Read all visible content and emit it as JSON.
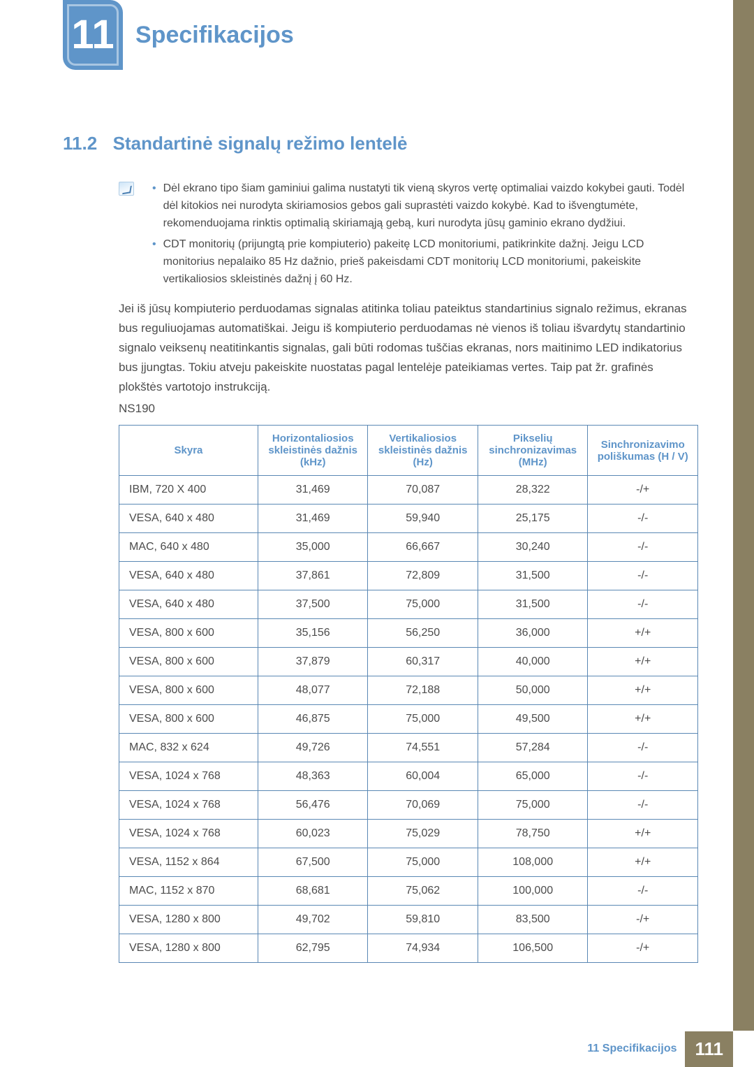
{
  "chapter": {
    "number": "11",
    "title": "Specifikacijos"
  },
  "section": {
    "number": "11.2",
    "title": "Standartinė signalų režimo lentelė"
  },
  "notes": [
    "Dėl ekrano tipo šiam gaminiui galima nustatyti tik vieną skyros vertę optimaliai vaizdo kokybei gauti. Todėl dėl kitokios nei nurodyta skiriamosios gebos gali suprastėti vaizdo kokybė. Kad to išvengtumėte, rekomenduojama rinktis optimalią skiriamąją gebą, kuri nurodyta jūsų gaminio ekrano dydžiui.",
    "CDT monitorių (prijungtą prie kompiuterio) pakeitę LCD monitoriumi, patikrinkite dažnį. Jeigu LCD monitorius nepalaiko 85 Hz dažnio, prieš pakeisdami CDT monitorių LCD monitoriumi, pakeiskite vertikaliosios skleistinės dažnį į 60 Hz."
  ],
  "paragraph": "Jei iš jūsų kompiuterio perduodamas signalas atitinka toliau pateiktus standartinius signalo režimus, ekranas bus reguliuojamas automatiškai. Jeigu iš kompiuterio perduodamas nė vienos iš toliau išvardytų standartinio signalo veiksenų neatitinkantis signalas, gali būti rodomas tuščias ekranas, nors maitinimo LED indikatorius bus įjungtas. Tokiu atveju pakeiskite nuostatas pagal lentelėje pateikiamas vertes. Taip pat žr. grafinės plokštės vartotojo instrukciją.",
  "model": "NS190",
  "table": {
    "columns": [
      "Skyra",
      "Horizontaliosios skleistinės dažnis (kHz)",
      "Vertikaliosios skleistinės dažnis (Hz)",
      "Pikselių sinchronizavimas (MHz)",
      "Sinchronizavimo poliškumas (H / V)"
    ],
    "column_widths": [
      "24%",
      "19%",
      "19%",
      "19%",
      "19%"
    ],
    "rows": [
      [
        "IBM, 720 X 400",
        "31,469",
        "70,087",
        "28,322",
        "-/+"
      ],
      [
        "VESA, 640 x 480",
        "31,469",
        "59,940",
        "25,175",
        "-/-"
      ],
      [
        "MAC, 640 x 480",
        "35,000",
        "66,667",
        "30,240",
        "-/-"
      ],
      [
        "VESA, 640 x 480",
        "37,861",
        "72,809",
        "31,500",
        "-/-"
      ],
      [
        "VESA, 640 x 480",
        "37,500",
        "75,000",
        "31,500",
        "-/-"
      ],
      [
        "VESA, 800 x 600",
        "35,156",
        "56,250",
        "36,000",
        "+/+"
      ],
      [
        "VESA, 800 x 600",
        "37,879",
        "60,317",
        "40,000",
        "+/+"
      ],
      [
        "VESA, 800 x 600",
        "48,077",
        "72,188",
        "50,000",
        "+/+"
      ],
      [
        "VESA, 800 x 600",
        "46,875",
        "75,000",
        "49,500",
        "+/+"
      ],
      [
        "MAC, 832 x 624",
        "49,726",
        "74,551",
        "57,284",
        "-/-"
      ],
      [
        "VESA, 1024 x 768",
        "48,363",
        "60,004",
        "65,000",
        "-/-"
      ],
      [
        "VESA, 1024 x 768",
        "56,476",
        "70,069",
        "75,000",
        "-/-"
      ],
      [
        "VESA, 1024 x 768",
        "60,023",
        "75,029",
        "78,750",
        "+/+"
      ],
      [
        "VESA, 1152 x 864",
        "67,500",
        "75,000",
        "108,000",
        "+/+"
      ],
      [
        "MAC, 1152 x 870",
        "68,681",
        "75,062",
        "100,000",
        "-/-"
      ],
      [
        "VESA, 1280 x 800",
        "49,702",
        "59,810",
        "83,500",
        "-/+"
      ],
      [
        "VESA, 1280 x 800",
        "62,795",
        "74,934",
        "106,500",
        "-/+"
      ]
    ]
  },
  "footer": {
    "label": "11 Specifikacijos",
    "page": "111"
  },
  "colors": {
    "accent": "#5f95c9",
    "side": "#8a8062",
    "text": "#4c4c4c",
    "border": "#5a88b4"
  }
}
